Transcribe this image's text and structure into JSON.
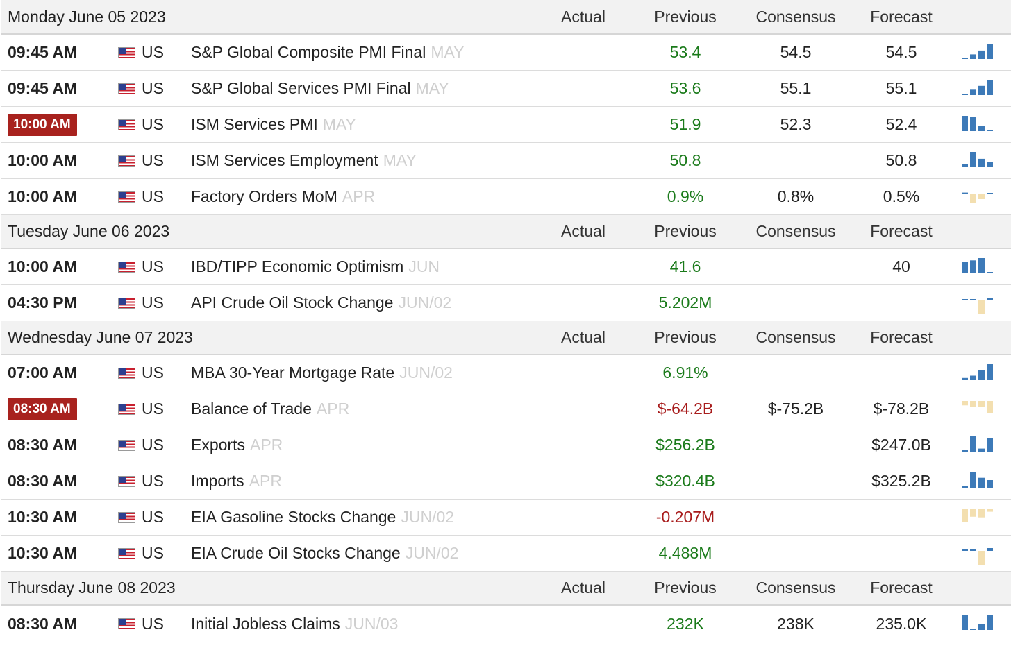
{
  "columns": {
    "actual": "Actual",
    "previous": "Previous",
    "consensus": "Consensus",
    "forecast": "Forecast"
  },
  "colors": {
    "positive": "#1a7a1a",
    "negative": "#a81c1c",
    "highlight_time": "#a8221e",
    "spark_blue": "#3d7ab8",
    "spark_tan": "#f3dfb0"
  },
  "days": [
    {
      "date": "Monday June 05 2023",
      "events": [
        {
          "time": "09:45 AM",
          "highlight": false,
          "country": "US",
          "flag": "us-flag-icon",
          "name": "S&P Global Composite PMI Final",
          "ref": "MAY",
          "actual": "",
          "previous": "53.4",
          "previous_tone": "pos",
          "consensus": "54.5",
          "forecast": "54.5",
          "spark": {
            "color": "blue",
            "bars": [
              0.05,
              0.3,
              0.55,
              1.0
            ]
          }
        },
        {
          "time": "09:45 AM",
          "highlight": false,
          "country": "US",
          "flag": "us-flag-icon",
          "name": "S&P Global Services PMI Final",
          "ref": "MAY",
          "actual": "",
          "previous": "53.6",
          "previous_tone": "pos",
          "consensus": "55.1",
          "forecast": "55.1",
          "spark": {
            "color": "blue",
            "bars": [
              0.05,
              0.35,
              0.6,
              1.0
            ]
          }
        },
        {
          "time": "10:00 AM",
          "highlight": true,
          "country": "US",
          "flag": "us-flag-icon",
          "name": "ISM Services PMI",
          "ref": "MAY",
          "actual": "",
          "previous": "51.9",
          "previous_tone": "pos",
          "consensus": "52.3",
          "forecast": "52.4",
          "spark": {
            "color": "blue",
            "bars": [
              1.0,
              0.95,
              0.35,
              0.05
            ]
          }
        },
        {
          "time": "10:00 AM",
          "highlight": false,
          "country": "US",
          "flag": "us-flag-icon",
          "name": "ISM Services Employment",
          "ref": "MAY",
          "actual": "",
          "previous": "50.8",
          "previous_tone": "pos",
          "consensus": "",
          "forecast": "50.8",
          "spark": {
            "color": "blue",
            "bars": [
              0.2,
              1.0,
              0.55,
              0.35
            ]
          }
        },
        {
          "time": "10:00 AM",
          "highlight": false,
          "country": "US",
          "flag": "us-flag-icon",
          "name": "Factory Orders MoM",
          "ref": "APR",
          "actual": "",
          "previous": "0.9%",
          "previous_tone": "pos",
          "consensus": "0.8%",
          "forecast": "0.5%",
          "spark": {
            "color": "mixed",
            "bars": [
              0.3,
              -0.6,
              -0.35,
              0.15
            ]
          }
        }
      ]
    },
    {
      "date": "Tuesday June 06 2023",
      "events": [
        {
          "time": "10:00 AM",
          "highlight": false,
          "country": "US",
          "flag": "us-flag-icon",
          "name": "IBD/TIPP Economic Optimism",
          "ref": "JUN",
          "actual": "",
          "previous": "41.6",
          "previous_tone": "pos",
          "consensus": "",
          "forecast": "40",
          "spark": {
            "color": "blue",
            "bars": [
              0.75,
              0.85,
              1.0,
              0.05
            ]
          }
        },
        {
          "time": "04:30 PM",
          "highlight": false,
          "country": "US",
          "flag": "us-flag-icon",
          "name": "API Crude Oil Stock Change",
          "ref": "JUN/02",
          "actual": "",
          "previous": "5.202M",
          "previous_tone": "pos",
          "consensus": "",
          "forecast": "",
          "spark": {
            "color": "mixed",
            "bars": [
              0.25,
              0.2,
              -1.0,
              0.45
            ]
          }
        }
      ]
    },
    {
      "date": "Wednesday June 07 2023",
      "events": [
        {
          "time": "07:00 AM",
          "highlight": false,
          "country": "US",
          "flag": "us-flag-icon",
          "name": "MBA 30-Year Mortgage Rate",
          "ref": "JUN/02",
          "actual": "",
          "previous": "6.91%",
          "previous_tone": "pos",
          "consensus": "",
          "forecast": "",
          "spark": {
            "color": "blue",
            "bars": [
              0.1,
              0.25,
              0.6,
              1.0
            ]
          }
        },
        {
          "time": "08:30 AM",
          "highlight": true,
          "country": "US",
          "flag": "us-flag-icon",
          "name": "Balance of Trade",
          "ref": "APR",
          "actual": "",
          "previous": "$-64.2B",
          "previous_tone": "neg",
          "consensus": "$-75.2B",
          "forecast": "$-78.2B",
          "spark": {
            "color": "tan",
            "bars": [
              -0.35,
              -0.5,
              -0.45,
              -1.0
            ]
          }
        },
        {
          "time": "08:30 AM",
          "highlight": false,
          "country": "US",
          "flag": "us-flag-icon",
          "name": "Exports",
          "ref": "APR",
          "actual": "",
          "previous": "$256.2B",
          "previous_tone": "pos",
          "consensus": "",
          "forecast": "$247.0B",
          "spark": {
            "color": "blue",
            "bars": [
              0.05,
              1.0,
              0.2,
              0.9
            ]
          }
        },
        {
          "time": "08:30 AM",
          "highlight": false,
          "country": "US",
          "flag": "us-flag-icon",
          "name": "Imports",
          "ref": "APR",
          "actual": "",
          "previous": "$320.4B",
          "previous_tone": "pos",
          "consensus": "",
          "forecast": "$325.2B",
          "spark": {
            "color": "blue",
            "bars": [
              0.05,
              1.0,
              0.65,
              0.5
            ]
          }
        },
        {
          "time": "10:30 AM",
          "highlight": false,
          "country": "US",
          "flag": "us-flag-icon",
          "name": "EIA Gasoline Stocks Change",
          "ref": "JUN/02",
          "actual": "",
          "previous": "-0.207M",
          "previous_tone": "neg",
          "consensus": "",
          "forecast": "",
          "spark": {
            "color": "tan",
            "bars": [
              -1.0,
              -0.6,
              -0.65,
              -0.2
            ]
          }
        },
        {
          "time": "10:30 AM",
          "highlight": false,
          "country": "US",
          "flag": "us-flag-icon",
          "name": "EIA Crude Oil Stocks Change",
          "ref": "JUN/02",
          "actual": "",
          "previous": "4.488M",
          "previous_tone": "pos",
          "consensus": "",
          "forecast": "",
          "spark": {
            "color": "mixed",
            "bars": [
              0.12,
              0.12,
              -1.0,
              0.5
            ]
          }
        }
      ]
    },
    {
      "date": "Thursday June 08 2023",
      "events": [
        {
          "time": "08:30 AM",
          "highlight": false,
          "country": "US",
          "flag": "us-flag-icon",
          "name": "Initial Jobless Claims",
          "ref": "JUN/03",
          "actual": "",
          "previous": "232K",
          "previous_tone": "pos",
          "consensus": "238K",
          "forecast": "235.0K",
          "spark": {
            "color": "blue",
            "bars": [
              1.0,
              0.05,
              0.4,
              1.0
            ]
          }
        }
      ]
    }
  ]
}
